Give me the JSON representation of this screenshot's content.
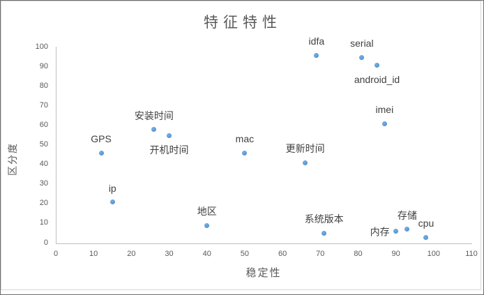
{
  "window": {
    "background": "#ffffff",
    "frame_border_color": "#6e6e6e",
    "chart_border_color": "#d9d9d9"
  },
  "chart_data": {
    "type": "scatter",
    "title": "特征特性",
    "xlabel": "稳定性",
    "ylabel": "区分度",
    "xlim": [
      0,
      110
    ],
    "ylim": [
      0,
      100
    ],
    "x_ticks": [
      0,
      10,
      20,
      30,
      40,
      50,
      60,
      70,
      80,
      90,
      100,
      110
    ],
    "y_ticks": [
      0,
      10,
      20,
      30,
      40,
      50,
      60,
      70,
      80,
      90,
      100
    ],
    "grid": false,
    "legend": "none",
    "point_color": "#5b9bd5",
    "axis_line_color": "#bfbfbf",
    "tick_label_color": "#595959",
    "data_label_color": "#3f3f3f",
    "title_color": "#595959",
    "points": [
      {
        "label": "GPS",
        "x": 12,
        "y": 46,
        "label_pos": "above"
      },
      {
        "label": "ip",
        "x": 15,
        "y": 21,
        "label_pos": "above"
      },
      {
        "label": "安装时间",
        "x": 26,
        "y": 58,
        "label_pos": "above"
      },
      {
        "label": "开机时间",
        "x": 30,
        "y": 55,
        "label_pos": "below"
      },
      {
        "label": "地区",
        "x": 40,
        "y": 9,
        "label_pos": "above"
      },
      {
        "label": "mac",
        "x": 50,
        "y": 46,
        "label_pos": "above"
      },
      {
        "label": "更新时间",
        "x": 66,
        "y": 41,
        "label_pos": "above"
      },
      {
        "label": "idfa",
        "x": 69,
        "y": 96,
        "label_pos": "above"
      },
      {
        "label": "系统版本",
        "x": 71,
        "y": 5,
        "label_pos": "above"
      },
      {
        "label": "serial",
        "x": 81,
        "y": 95,
        "label_pos": "above"
      },
      {
        "label": "android_id",
        "x": 85,
        "y": 91,
        "label_pos": "below"
      },
      {
        "label": "imei",
        "x": 87,
        "y": 61,
        "label_pos": "above"
      },
      {
        "label": "内存",
        "x": 90,
        "y": 6,
        "label_pos": "left"
      },
      {
        "label": "存储",
        "x": 93,
        "y": 7,
        "label_pos": "above"
      },
      {
        "label": "cpu",
        "x": 98,
        "y": 3,
        "label_pos": "above"
      }
    ]
  }
}
